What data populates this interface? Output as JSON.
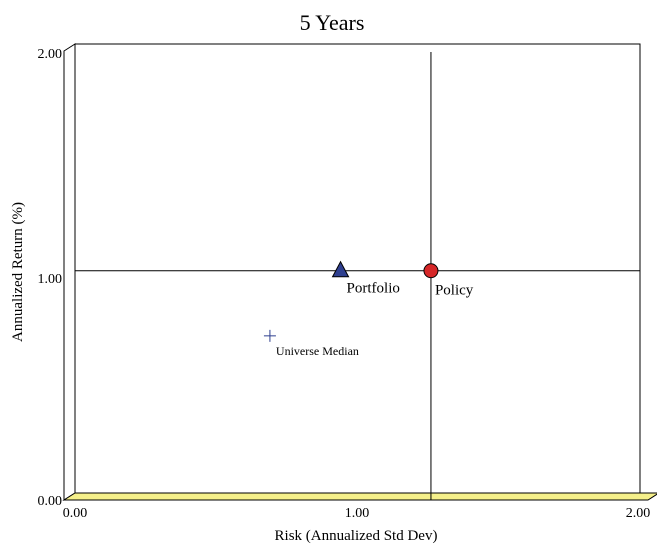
{
  "chart_data": {
    "type": "scatter",
    "title": "5 Years",
    "xlabel": "Risk (Annualized Std Dev)",
    "ylabel": "Annualized Return (%)",
    "xlim": [
      0.0,
      2.0
    ],
    "ylim": [
      0.0,
      2.0
    ],
    "x_ticks": [
      "0.00",
      "1.00",
      "2.00"
    ],
    "y_ticks": [
      "0.00",
      "1.00",
      "2.00"
    ],
    "grid": false,
    "floor_color": "#f5f08a",
    "points": [
      {
        "name": "Portfolio",
        "x": 0.94,
        "y": 0.99,
        "marker": "triangle",
        "color": "#2e3f8f"
      },
      {
        "name": "Policy",
        "x": 1.26,
        "y": 0.99,
        "marker": "circle",
        "color": "#d62728"
      },
      {
        "name": "Universe Median",
        "x": 0.69,
        "y": 0.7,
        "marker": "cross",
        "color": "#2e3f8f"
      }
    ],
    "reference_lines": {
      "policy_x": 1.26,
      "policy_y": 0.99
    }
  }
}
